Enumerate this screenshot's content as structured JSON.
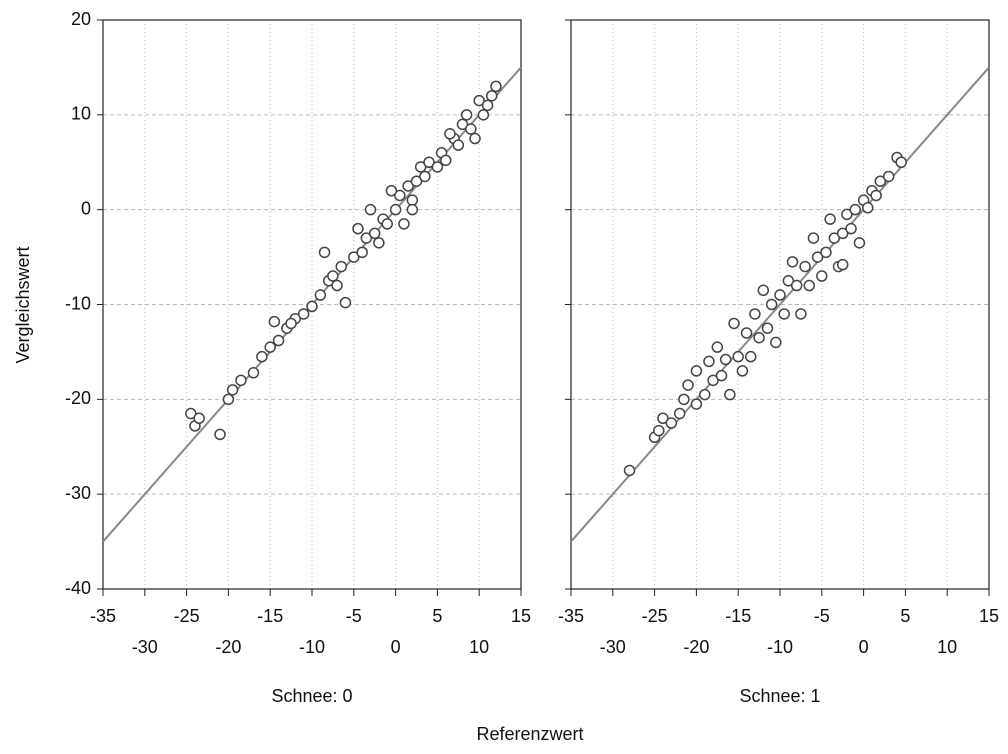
{
  "chart_data": [
    {
      "type": "scatter",
      "subtitle": "Schnee: 0",
      "ylabel": "Vergleichswert",
      "xlabel": "Referenzwert",
      "xlim": [
        -35,
        15
      ],
      "ylim": [
        -40,
        20
      ],
      "xticks": [
        -35,
        -30,
        -25,
        -20,
        -15,
        -10,
        -5,
        0,
        5,
        10,
        15
      ],
      "yticks": [
        -40,
        -30,
        -20,
        -10,
        0,
        10,
        20
      ],
      "show_yticklabels": true,
      "grid": true,
      "color": "#444444",
      "x": [
        -24.5,
        -24,
        -23.5,
        -21,
        -20,
        -19.5,
        -18.5,
        -17,
        -16,
        -15,
        -14.5,
        -14,
        -13,
        -12,
        -11,
        -10,
        -9,
        -8.5,
        -8,
        -7,
        -6.5,
        -6,
        -5,
        -4.5,
        -4,
        -3.5,
        -3,
        -2.5,
        -2,
        -1.5,
        -1,
        0,
        0.5,
        1,
        1.5,
        2,
        2.5,
        3,
        3.5,
        4,
        5,
        5.5,
        6,
        7,
        7.5,
        8,
        8.5,
        9,
        9.5,
        10,
        10.5,
        11,
        11.5,
        12,
        -0.5,
        2,
        -7.5,
        -12.5,
        6.5
      ],
      "values": [
        -21.5,
        -22.8,
        -22,
        -23.7,
        -20,
        -19,
        -18,
        -17.2,
        -15.5,
        -14.5,
        -11.8,
        -13.8,
        -12.5,
        -11.5,
        -11,
        -10.2,
        -9,
        -4.5,
        -7.5,
        -8,
        -6,
        -9.8,
        -5,
        -2,
        -4.5,
        -3,
        0,
        -2.5,
        -3.5,
        -1,
        -1.5,
        0,
        1.5,
        -1.5,
        2.5,
        1,
        3,
        4.5,
        3.5,
        5,
        4.5,
        6,
        5.2,
        7.5,
        6.8,
        9,
        10,
        8.5,
        7.5,
        11.5,
        10,
        11,
        12,
        13,
        2,
        0,
        -7,
        -12,
        8
      ],
      "line": {
        "color": "#888888",
        "x": [
          -35,
          15
        ],
        "values": [
          -35,
          15
        ]
      }
    },
    {
      "type": "scatter",
      "subtitle": "Schnee: 1",
      "xlim": [
        -35,
        15
      ],
      "ylim": [
        -40,
        20
      ],
      "xticks": [
        -35,
        -30,
        -25,
        -20,
        -15,
        -10,
        -5,
        0,
        5,
        10,
        15
      ],
      "yticks": [
        -40,
        -30,
        -20,
        -10,
        0,
        10,
        20
      ],
      "show_yticklabels": false,
      "grid": true,
      "color": "#444444",
      "x": [
        -28,
        -25,
        -24.5,
        -24,
        -23,
        -22,
        -21.5,
        -21,
        -20,
        -20,
        -19,
        -18.5,
        -18,
        -17.5,
        -17,
        -16.5,
        -16,
        -15.5,
        -15,
        -14.5,
        -14,
        -13.5,
        -13,
        -12.5,
        -12,
        -11.5,
        -11,
        -10.5,
        -10,
        -9.5,
        -9,
        -8.5,
        -8,
        -7.5,
        -7,
        -6.5,
        -6,
        -5.5,
        -5,
        -4.5,
        -4,
        -3.5,
        -3,
        -2.5,
        -2,
        -1.5,
        -1,
        -0.5,
        0,
        0.5,
        1,
        1.5,
        2,
        3,
        4,
        4.5,
        -2.5
      ],
      "values": [
        -27.5,
        -24,
        -23.3,
        -22,
        -22.5,
        -21.5,
        -20,
        -18.5,
        -20.5,
        -17,
        -19.5,
        -16,
        -18,
        -14.5,
        -17.5,
        -15.8,
        -19.5,
        -12,
        -15.5,
        -17,
        -13,
        -15.5,
        -11,
        -13.5,
        -8.5,
        -12.5,
        -10,
        -14,
        -9,
        -11,
        -7.5,
        -5.5,
        -8,
        -11,
        -6,
        -8,
        -3,
        -5,
        -7,
        -4.5,
        -1,
        -3,
        -6,
        -2.5,
        -0.5,
        -2,
        0,
        -3.5,
        1,
        0.2,
        2,
        1.5,
        3,
        3.5,
        5.5,
        5,
        -5.8
      ],
      "line": {
        "color": "#888888",
        "x": [
          -35,
          15
        ],
        "values": [
          -35,
          15
        ]
      }
    }
  ]
}
